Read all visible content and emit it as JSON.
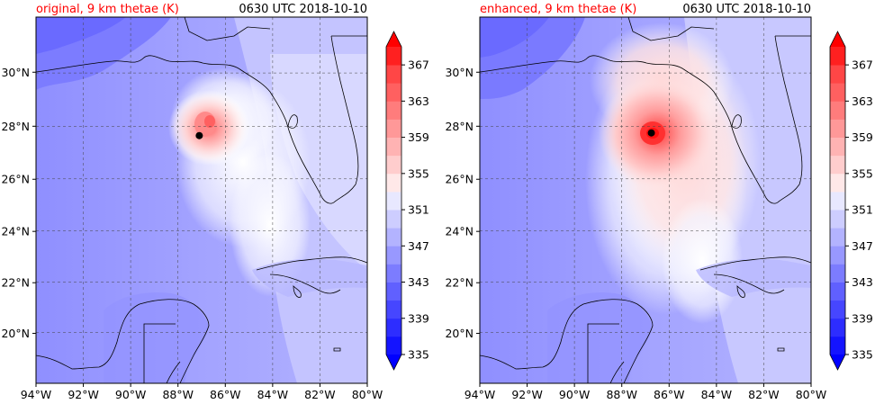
{
  "panels": [
    {
      "title_left": "original, 9 km thetae (K)",
      "title_right": "0630 UTC 2018-10-10",
      "center": {
        "lon": -87.1,
        "lat": 27.65
      }
    },
    {
      "title_left": "enhanced, 9 km thetae (K)",
      "title_right": "0630 UTC 2018-10-10",
      "center": {
        "lon": -86.75,
        "lat": 27.75
      }
    }
  ],
  "map_extent": {
    "lon_min": -94,
    "lon_max": -80,
    "lat_min": 18,
    "lat_max": 32
  },
  "lon_ticks": [
    {
      "value": -94,
      "label": "94°W"
    },
    {
      "value": -92,
      "label": "92°W"
    },
    {
      "value": -90,
      "label": "90°W"
    },
    {
      "value": -88,
      "label": "88°W"
    },
    {
      "value": -86,
      "label": "86°W"
    },
    {
      "value": -84,
      "label": "84°W"
    },
    {
      "value": -82,
      "label": "82°W"
    },
    {
      "value": -80,
      "label": "80°W"
    }
  ],
  "lat_ticks": [
    {
      "value": 20,
      "label": "20°N"
    },
    {
      "value": 22,
      "label": "22°N"
    },
    {
      "value": 24,
      "label": "24°N"
    },
    {
      "value": 26,
      "label": "26°N"
    },
    {
      "value": 28,
      "label": "28°N"
    },
    {
      "value": 30,
      "label": "30°N"
    }
  ],
  "colorbar": {
    "min": 335,
    "max": 369,
    "step": 2,
    "tick_labels": [
      "335",
      "339",
      "343",
      "347",
      "351",
      "355",
      "359",
      "363",
      "367"
    ],
    "colors": [
      "#1414ff",
      "#2d2dff",
      "#4646ff",
      "#6060ff",
      "#7c7cff",
      "#9898ff",
      "#b3b3ff",
      "#cdcdff",
      "#e8e8ff",
      "#ffe8e8",
      "#ffcdcd",
      "#ffb3b3",
      "#ff9898",
      "#ff7c7c",
      "#ff6060",
      "#ff4646",
      "#ff2020"
    ],
    "under_color": "#0000ff",
    "over_color": "#ff0000"
  },
  "title_color": "#ff0000"
}
